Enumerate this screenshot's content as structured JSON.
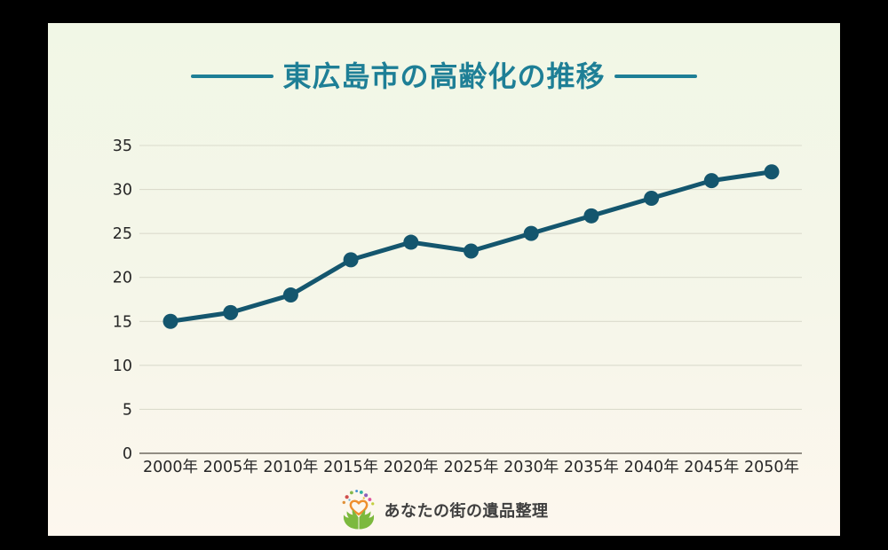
{
  "title": {
    "text": "東広島市の高齢化の推移"
  },
  "footer": {
    "brand_text": "あなたの街の遺品整理"
  },
  "colors": {
    "title_teal": "#1e7f96",
    "line": "#14566e",
    "marker": "#14566e",
    "gridline": "#dbdbcc",
    "baseline": "#6e6a60",
    "tick_label": "#262626",
    "card_bg_top": "#f1f7e6",
    "card_bg_bottom": "#fdf7ee",
    "frame": "#000000"
  },
  "chart_data": {
    "type": "line",
    "title": "東広島市の高齢化の推移",
    "categories": [
      "2000年",
      "2005年",
      "2010年",
      "2015年",
      "2020年",
      "2025年",
      "2030年",
      "2035年",
      "2040年",
      "2045年",
      "2050年"
    ],
    "values": [
      15,
      16,
      18,
      22,
      24,
      23,
      25,
      27,
      29,
      31,
      32
    ],
    "xlabel": "",
    "ylabel": "",
    "ylim": [
      0,
      35
    ],
    "ytick_step": 5,
    "yticks": [
      0,
      5,
      10,
      15,
      20,
      25,
      30,
      35
    ],
    "grid": "horizontal",
    "legend": "none",
    "line_color": "#14566e",
    "marker_color": "#14566e"
  }
}
